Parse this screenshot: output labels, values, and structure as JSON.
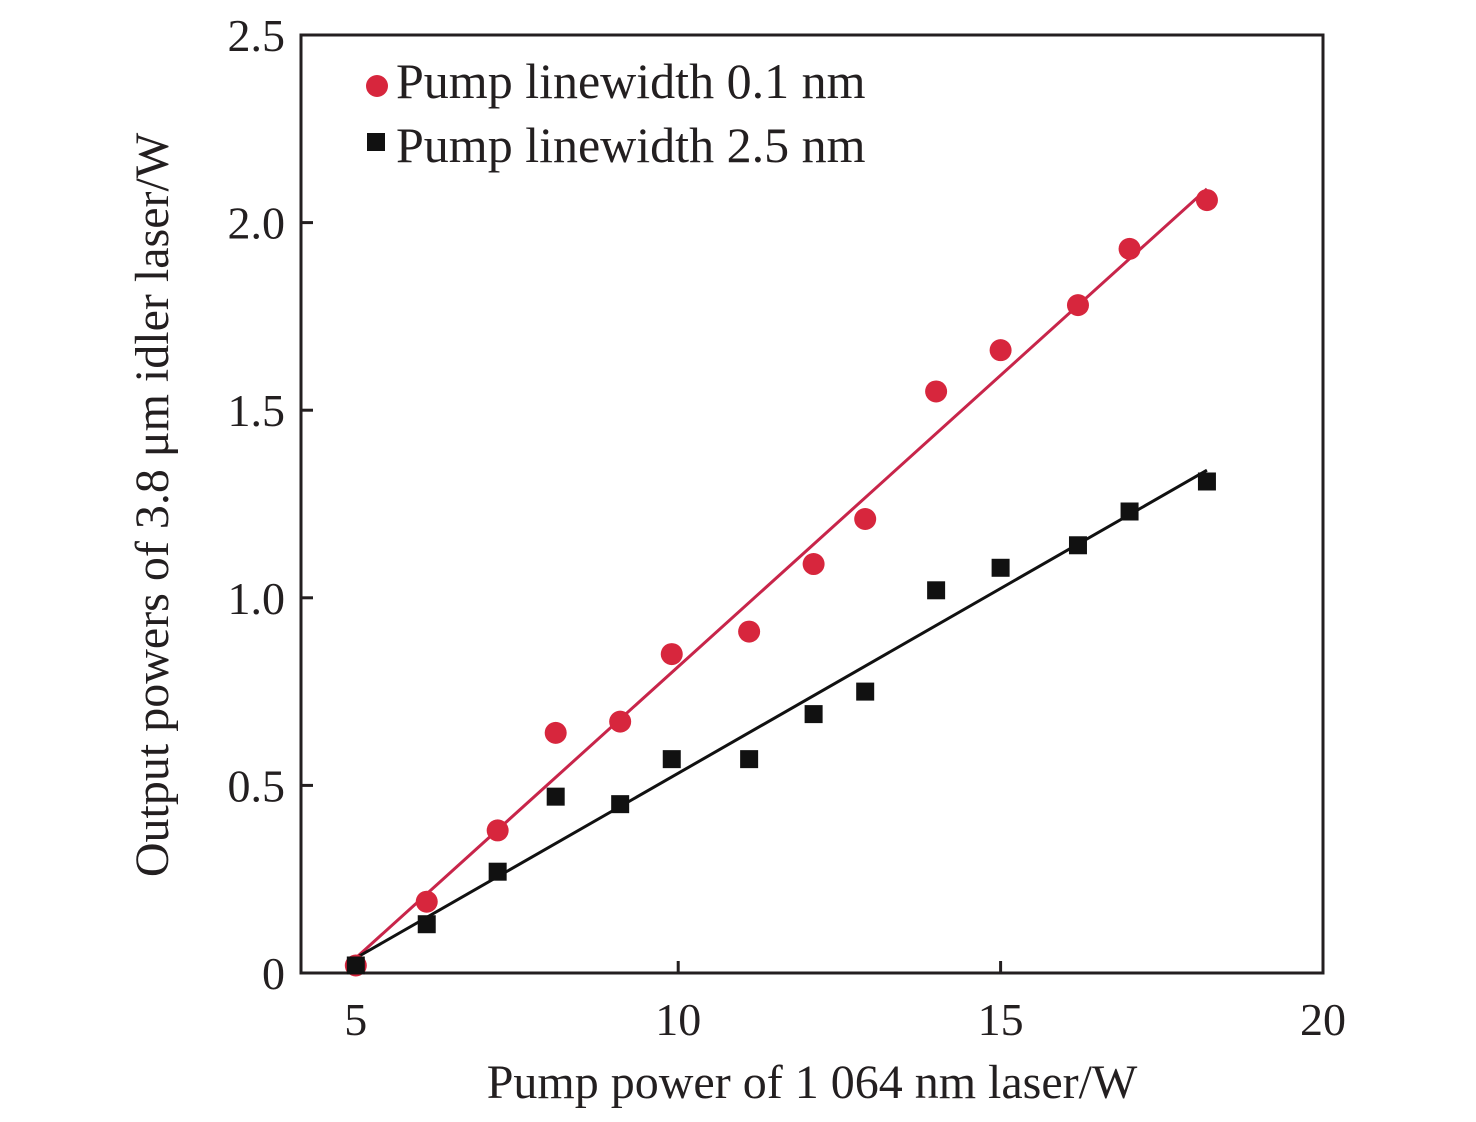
{
  "chart_data": {
    "type": "scatter",
    "xlabel": "Pump power of 1 064 nm laser/W",
    "ylabel": "Output powers of 3.8 μm idler laser/W",
    "xlim": [
      4.15,
      20
    ],
    "ylim": [
      0,
      2.5
    ],
    "xticks": [
      5,
      10,
      15,
      20
    ],
    "xtick_labels": [
      "5",
      "10",
      "15",
      "20"
    ],
    "yticks": [
      0,
      0.5,
      1.0,
      1.5,
      2.0,
      2.5
    ],
    "ytick_labels": [
      "0",
      "0.5",
      "1.0",
      "1.5",
      "2.0",
      "2.5"
    ],
    "grid": false,
    "legend_position": "top-left",
    "series": [
      {
        "name": "Pump linewidth 0.1 nm",
        "marker": "circle",
        "color": "#d7263d",
        "line_color": "#c8254a",
        "x": [
          5.0,
          6.1,
          7.2,
          8.1,
          9.1,
          9.9,
          11.1,
          12.1,
          12.9,
          14.0,
          15.0,
          16.2,
          17.0,
          18.2
        ],
        "y": [
          0.02,
          0.19,
          0.38,
          0.64,
          0.67,
          0.85,
          0.91,
          1.09,
          1.21,
          1.55,
          1.66,
          1.78,
          1.93,
          2.06
        ],
        "fit": {
          "x": [
            5.0,
            18.2
          ],
          "y": [
            0.04,
            2.09
          ]
        }
      },
      {
        "name": "Pump linewidth 2.5 nm",
        "marker": "square",
        "color": "#111111",
        "line_color": "#111111",
        "x": [
          5.0,
          6.1,
          7.2,
          8.1,
          9.1,
          9.9,
          11.1,
          12.1,
          12.9,
          14.0,
          15.0,
          16.2,
          17.0,
          18.2
        ],
        "y": [
          0.02,
          0.13,
          0.27,
          0.47,
          0.45,
          0.57,
          0.57,
          0.69,
          0.75,
          1.02,
          1.08,
          1.14,
          1.23,
          1.31
        ],
        "fit": {
          "x": [
            5.0,
            18.2
          ],
          "y": [
            0.04,
            1.34
          ]
        }
      }
    ]
  }
}
